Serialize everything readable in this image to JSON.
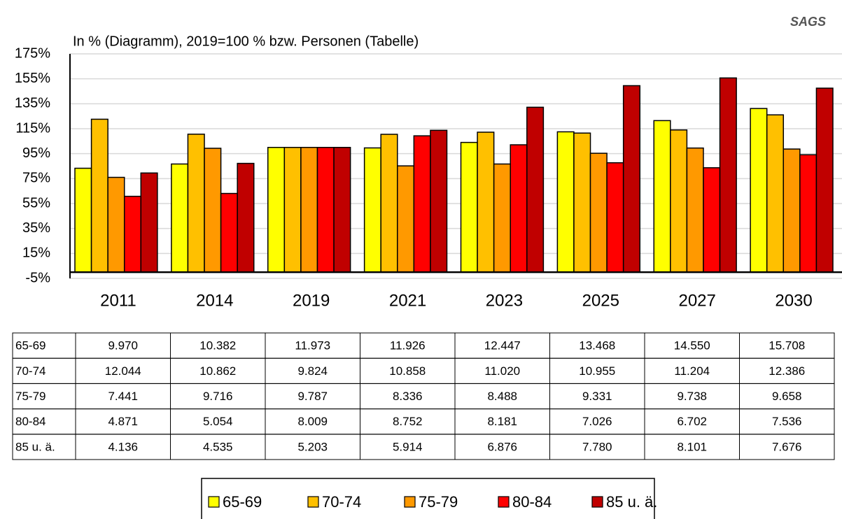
{
  "chart_data": {
    "type": "bar",
    "title": "In % (Diagramm), 2019=100 % bzw. Personen (Tabelle)",
    "logo": "SAGS",
    "categories": [
      "2011",
      "2014",
      "2019",
      "2021",
      "2023",
      "2025",
      "2027",
      "2030"
    ],
    "series": [
      {
        "name": "65-69",
        "color": "#ffff00",
        "values": [
          83.3,
          86.7,
          100,
          99.6,
          104.0,
          112.5,
          121.5,
          131.2
        ],
        "table": [
          "9.970",
          "10.382",
          "11.973",
          "11.926",
          "12.447",
          "13.468",
          "14.550",
          "15.708"
        ]
      },
      {
        "name": "70-74",
        "color": "#ffc000",
        "values": [
          122.6,
          110.6,
          100,
          110.5,
          112.2,
          111.5,
          114.0,
          126.1
        ],
        "table": [
          "12.044",
          "10.862",
          "9.824",
          "10.858",
          "11.020",
          "10.955",
          "11.204",
          "12.386"
        ]
      },
      {
        "name": "75-79",
        "color": "#ff9900",
        "values": [
          76.0,
          99.3,
          100,
          85.2,
          86.7,
          95.3,
          99.5,
          98.7
        ],
        "table": [
          "7.441",
          "9.716",
          "9.787",
          "8.336",
          "8.488",
          "9.331",
          "9.738",
          "9.658"
        ]
      },
      {
        "name": "80-84",
        "color": "#ff0000",
        "values": [
          60.8,
          63.1,
          100,
          109.3,
          102.1,
          87.7,
          83.7,
          94.1
        ],
        "table": [
          "4.871",
          "5.054",
          "8.009",
          "8.752",
          "8.181",
          "7.026",
          "6.702",
          "7.536"
        ]
      },
      {
        "name": "85 u. ä.",
        "color": "#c00000",
        "values": [
          79.5,
          87.2,
          100,
          113.7,
          132.2,
          149.5,
          155.7,
          147.5
        ],
        "table": [
          "4.136",
          "4.535",
          "5.203",
          "5.914",
          "6.876",
          "7.780",
          "8.101",
          "7.676"
        ]
      }
    ],
    "ylim": [
      -5,
      175
    ],
    "yticks": [
      {
        "value": -5,
        "label": "-5%"
      },
      {
        "value": 15,
        "label": "15%"
      },
      {
        "value": 35,
        "label": "35%"
      },
      {
        "value": 55,
        "label": "55%"
      },
      {
        "value": 75,
        "label": "75%"
      },
      {
        "value": 95,
        "label": "95%"
      },
      {
        "value": 115,
        "label": "115%"
      },
      {
        "value": 135,
        "label": "135%"
      },
      {
        "value": 155,
        "label": "155%"
      },
      {
        "value": 175,
        "label": "175%"
      }
    ],
    "grid": true,
    "legend": "bottom"
  }
}
